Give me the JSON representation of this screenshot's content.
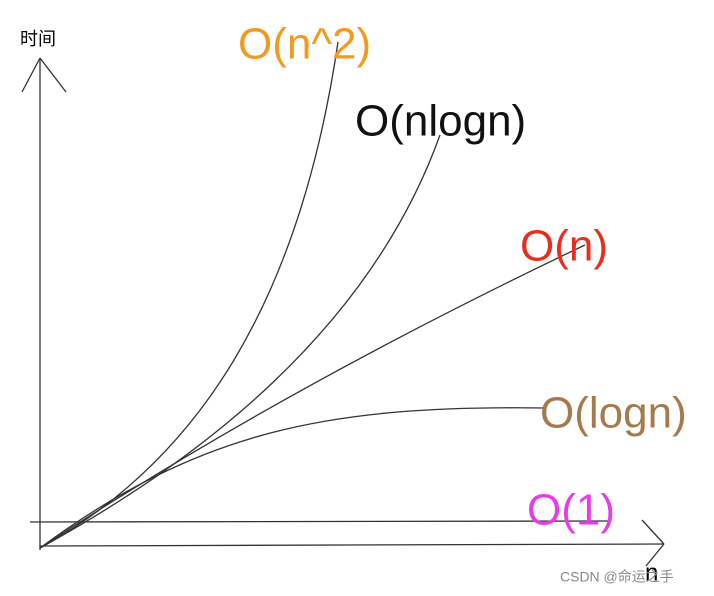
{
  "y_axis_label": "时间",
  "x_axis_label": "n",
  "curves": [
    {
      "label": "O(n^2)",
      "color": "#f29a1f"
    },
    {
      "label": "O(nlogn)",
      "color": "#111111"
    },
    {
      "label": "O(n)",
      "color": "#ea2e1e"
    },
    {
      "label": "O(logn)",
      "color": "#a57b4d"
    },
    {
      "label": "O(1)",
      "color": "#e63ee6"
    }
  ],
  "watermark": "CSDN @命运之手"
}
